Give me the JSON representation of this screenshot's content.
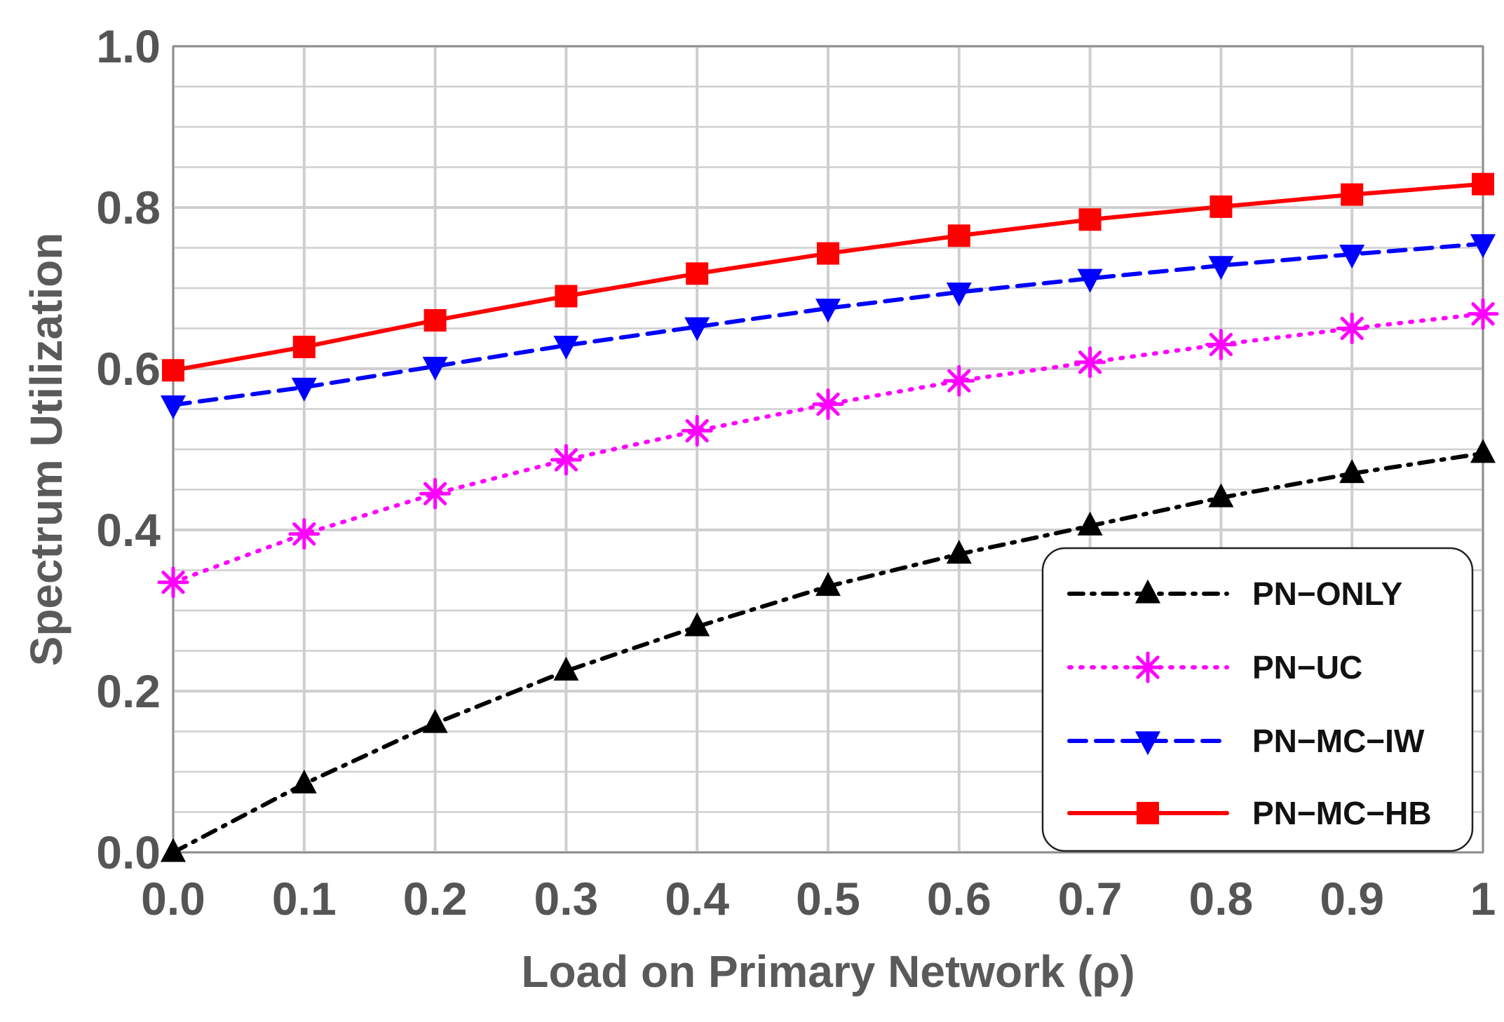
{
  "chart_data": {
    "type": "line",
    "title": "",
    "xlabel": "Load on Primary Network (ρ)",
    "ylabel": "Spectrum Utilization",
    "xlim": [
      0,
      1
    ],
    "ylim": [
      0,
      1
    ],
    "grid": true,
    "legend_position": "bottom-right",
    "x_ticks": [
      "0.0",
      "0.1",
      "0.2",
      "0.3",
      "0.4",
      "0.5",
      "0.6",
      "0.7",
      "0.8",
      "0.9",
      "1"
    ],
    "y_ticks": [
      "0.0",
      "0.2",
      "0.4",
      "0.6",
      "0.8",
      "1.0"
    ],
    "x": [
      0.0,
      0.1,
      0.2,
      0.3,
      0.4,
      0.5,
      0.6,
      0.7,
      0.8,
      0.9,
      1.0
    ],
    "series": [
      {
        "name": "PN−ONLY",
        "color": "#000000",
        "line_style": "dashdot",
        "marker": "triangle-up",
        "values": [
          0.0,
          0.085,
          0.16,
          0.225,
          0.28,
          0.33,
          0.37,
          0.405,
          0.44,
          0.47,
          0.495
        ]
      },
      {
        "name": "PN−UC",
        "color": "#ff00ff",
        "line_style": "dotted",
        "marker": "star",
        "values": [
          0.335,
          0.395,
          0.445,
          0.487,
          0.523,
          0.556,
          0.585,
          0.608,
          0.63,
          0.65,
          0.668
        ]
      },
      {
        "name": "PN−MC−IW",
        "color": "#0000ff",
        "line_style": "dashed",
        "marker": "triangle-down",
        "values": [
          0.555,
          0.577,
          0.603,
          0.629,
          0.652,
          0.675,
          0.695,
          0.712,
          0.728,
          0.742,
          0.755
        ]
      },
      {
        "name": "PN−MC−HB",
        "color": "#ff0000",
        "line_style": "solid",
        "marker": "square",
        "values": [
          0.598,
          0.627,
          0.66,
          0.69,
          0.718,
          0.743,
          0.765,
          0.785,
          0.801,
          0.816,
          0.829
        ]
      }
    ]
  }
}
